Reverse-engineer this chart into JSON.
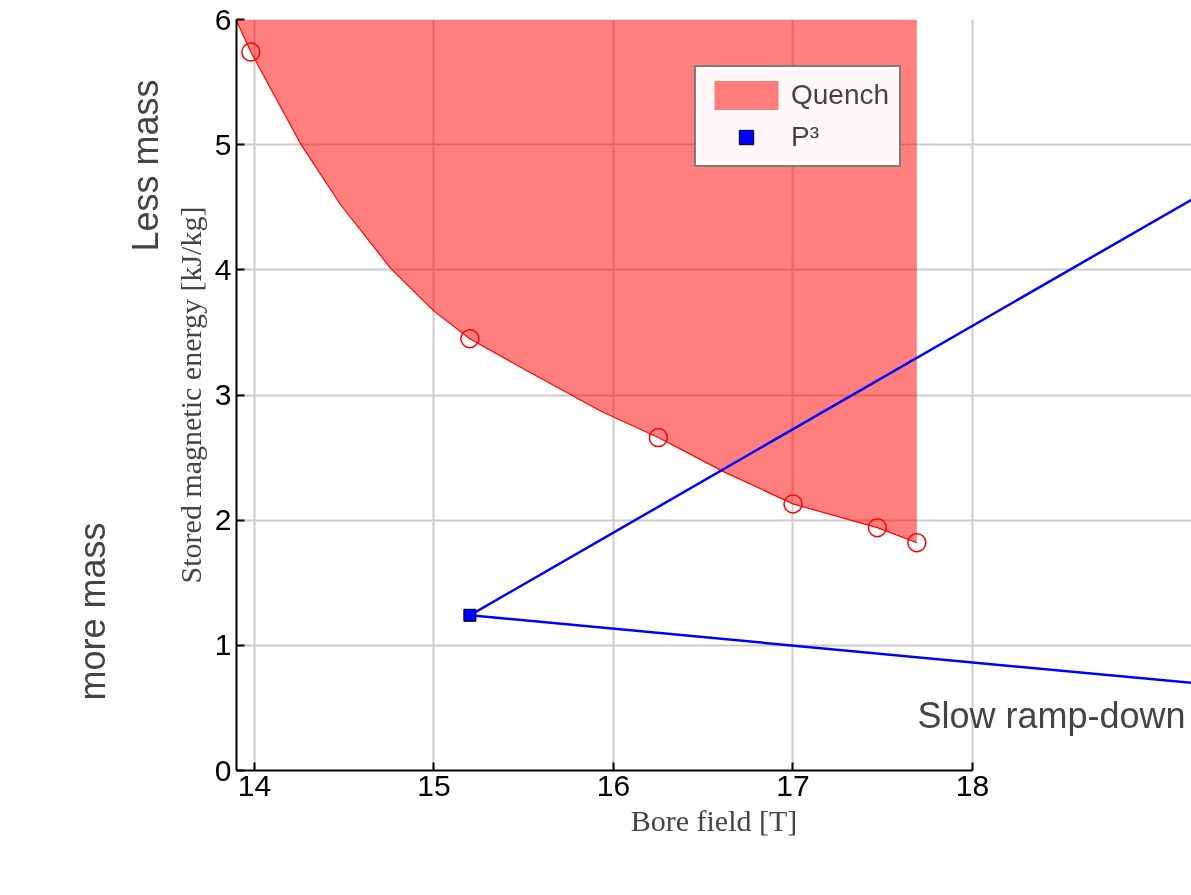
{
  "chart_data": {
    "type": "line",
    "xlabel": "Bore field [T]",
    "ylabel": "Stored magnetic energy [kJ/kg]",
    "xlim": [
      13.9,
      19.22
    ],
    "ylim": [
      0,
      6
    ],
    "xticks": [
      14,
      15,
      16,
      17,
      18
    ],
    "yticks": [
      0,
      1,
      2,
      3,
      4,
      5,
      6
    ],
    "grid": true,
    "legend": "top right",
    "series": [
      {
        "name": "Quench",
        "color": "#ff0000",
        "x": [
          13.9,
          13.98,
          14.26,
          14.48,
          14.76,
          15.0,
          15.2,
          15.46,
          15.93,
          16.25,
          16.61,
          17.0,
          17.47,
          17.69
        ],
        "values": [
          5.99,
          5.74,
          5.0,
          4.52,
          4.01,
          3.67,
          3.45,
          3.24,
          2.87,
          2.66,
          2.39,
          2.13,
          1.94,
          1.82
        ],
        "lower": [
          5.99,
          5.74,
          5.0,
          4.52,
          4.01,
          3.67,
          3.45,
          3.24,
          2.87,
          2.66,
          2.39,
          2.13,
          1.94,
          1.82
        ],
        "upper": [
          6,
          6,
          6,
          6,
          6,
          6,
          6,
          6,
          6,
          6,
          6,
          6,
          6,
          6
        ]
      },
      {
        "name": "P³",
        "type": "scatter",
        "marker": "square",
        "color": "#0000ff",
        "x": [
          15.2
        ],
        "values": [
          1.24
        ]
      },
      {
        "type": "scatter",
        "marker": "circle",
        "color": "#ff0000",
        "x": [
          13.98,
          15.2,
          16.25,
          17.0,
          17.47,
          17.69
        ],
        "values": [
          5.74,
          3.45,
          2.66,
          2.13,
          1.94,
          1.82
        ]
      },
      {
        "color": "#0000ff",
        "x": [
          15.2,
          19.22
        ],
        "values": [
          1.24,
          4.56
        ]
      },
      {
        "color": "#0000ff",
        "x": [
          15.2,
          19.22
        ],
        "values": [
          1.24,
          0.7
        ]
      }
    ],
    "annotations": [
      "Less mass",
      "more mass",
      "Slow ramp-down"
    ]
  }
}
